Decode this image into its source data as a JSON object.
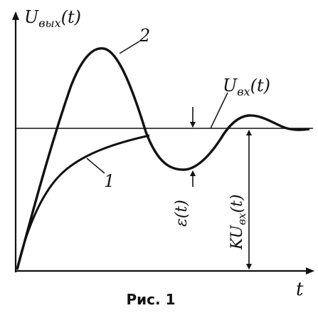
{
  "labels": {
    "y_axis": "U",
    "y_axis_sub": "вых",
    "y_axis_arg": "(t)",
    "x_axis": "t",
    "input": "U",
    "input_sub": "вх",
    "input_arg": "(t)",
    "curve_1": "1",
    "curve_2": "2",
    "error": "ε(t)",
    "kuin": "KU",
    "kuin_sub": "вх",
    "kuin_arg": "(t)"
  },
  "caption": "Рис. 1"
}
